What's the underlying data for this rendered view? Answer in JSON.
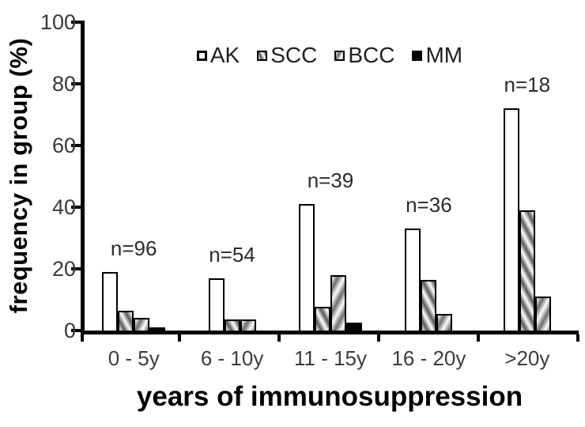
{
  "figure": {
    "y_axis_label": "frequency in group (%)",
    "x_axis_label": "years of immunosuppression"
  },
  "colors": {
    "background": "#ffffff",
    "axis": "#000000",
    "tick_label": "#3a3a3a",
    "bar_outline": "#000000",
    "ak_fill": "#ffffff",
    "scc_fill": "gray-diagonal-gradient",
    "bcc_fill": "gray-diagonal-gradient-reverse",
    "mm_fill": "#000000"
  },
  "chart_data": {
    "type": "bar",
    "title": "",
    "xlabel": "years of immunosuppression",
    "ylabel": "frequency in group (%)",
    "ylim": [
      0,
      100
    ],
    "yticks": [
      0,
      20,
      40,
      60,
      80,
      100
    ],
    "grid": false,
    "legend_position": "top-center",
    "categories": [
      "0 - 5y",
      "6 - 10y",
      "11 - 15y",
      "16 - 20y",
      ">20y"
    ],
    "annotations": [
      "n=96",
      "n=54",
      "n=39",
      "n=36",
      "n=18"
    ],
    "series": [
      {
        "name": "AK",
        "swatch": "ak-open-square",
        "values": [
          19,
          17,
          41,
          33,
          72
        ]
      },
      {
        "name": "SCC",
        "swatch": "scc-hatched-square",
        "values": [
          6.5,
          3.7,
          7.7,
          16.5,
          39
        ]
      },
      {
        "name": "BCC",
        "swatch": "bcc-hatched-square",
        "values": [
          4,
          3.7,
          18,
          5.5,
          11
        ]
      },
      {
        "name": "MM",
        "swatch": "mm-solid-square",
        "values": [
          1,
          0,
          2.5,
          0,
          0
        ]
      }
    ]
  }
}
